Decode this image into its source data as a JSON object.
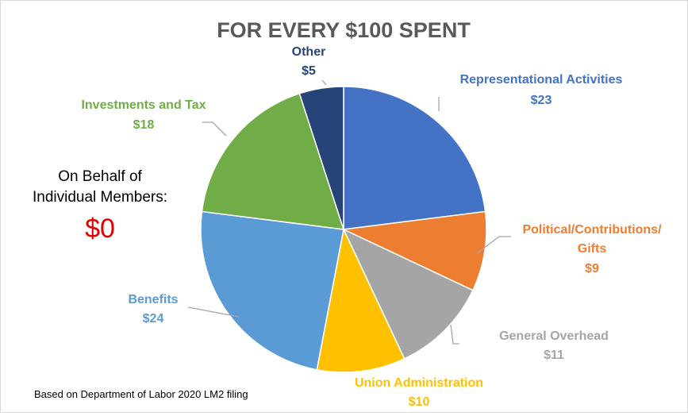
{
  "chart_data": {
    "type": "pie",
    "title": "FOR EVERY $100 SPENT",
    "start_angle_deg": 0,
    "direction": "clockwise",
    "slices": [
      {
        "label": "Representational Activities",
        "value": 23,
        "value_label": "$23",
        "color": "#4472C4"
      },
      {
        "label": "Political/Contributions/",
        "label_line2": "Gifts",
        "value": 9,
        "value_label": "$9",
        "color": "#ED7D31"
      },
      {
        "label": "General Overhead",
        "value": 11,
        "value_label": "$11",
        "color": "#A5A5A5"
      },
      {
        "label": "Union Administration",
        "value": 10,
        "value_label": "$10",
        "color": "#FFC000"
      },
      {
        "label": "Benefits",
        "value": 24,
        "value_label": "$24",
        "color": "#5B9BD5"
      },
      {
        "label": "Investments and Tax",
        "value": 18,
        "value_label": "$18",
        "color": "#70AD47"
      },
      {
        "label": "Other",
        "value": 5,
        "value_label": "$5",
        "color": "#264478"
      }
    ]
  },
  "side_note": {
    "line1": "On Behalf of",
    "line2": "Individual Members:",
    "value": "$0",
    "value_color": "#E00000"
  },
  "footnote": "Based on Department of Labor 2020 LM2 filing"
}
